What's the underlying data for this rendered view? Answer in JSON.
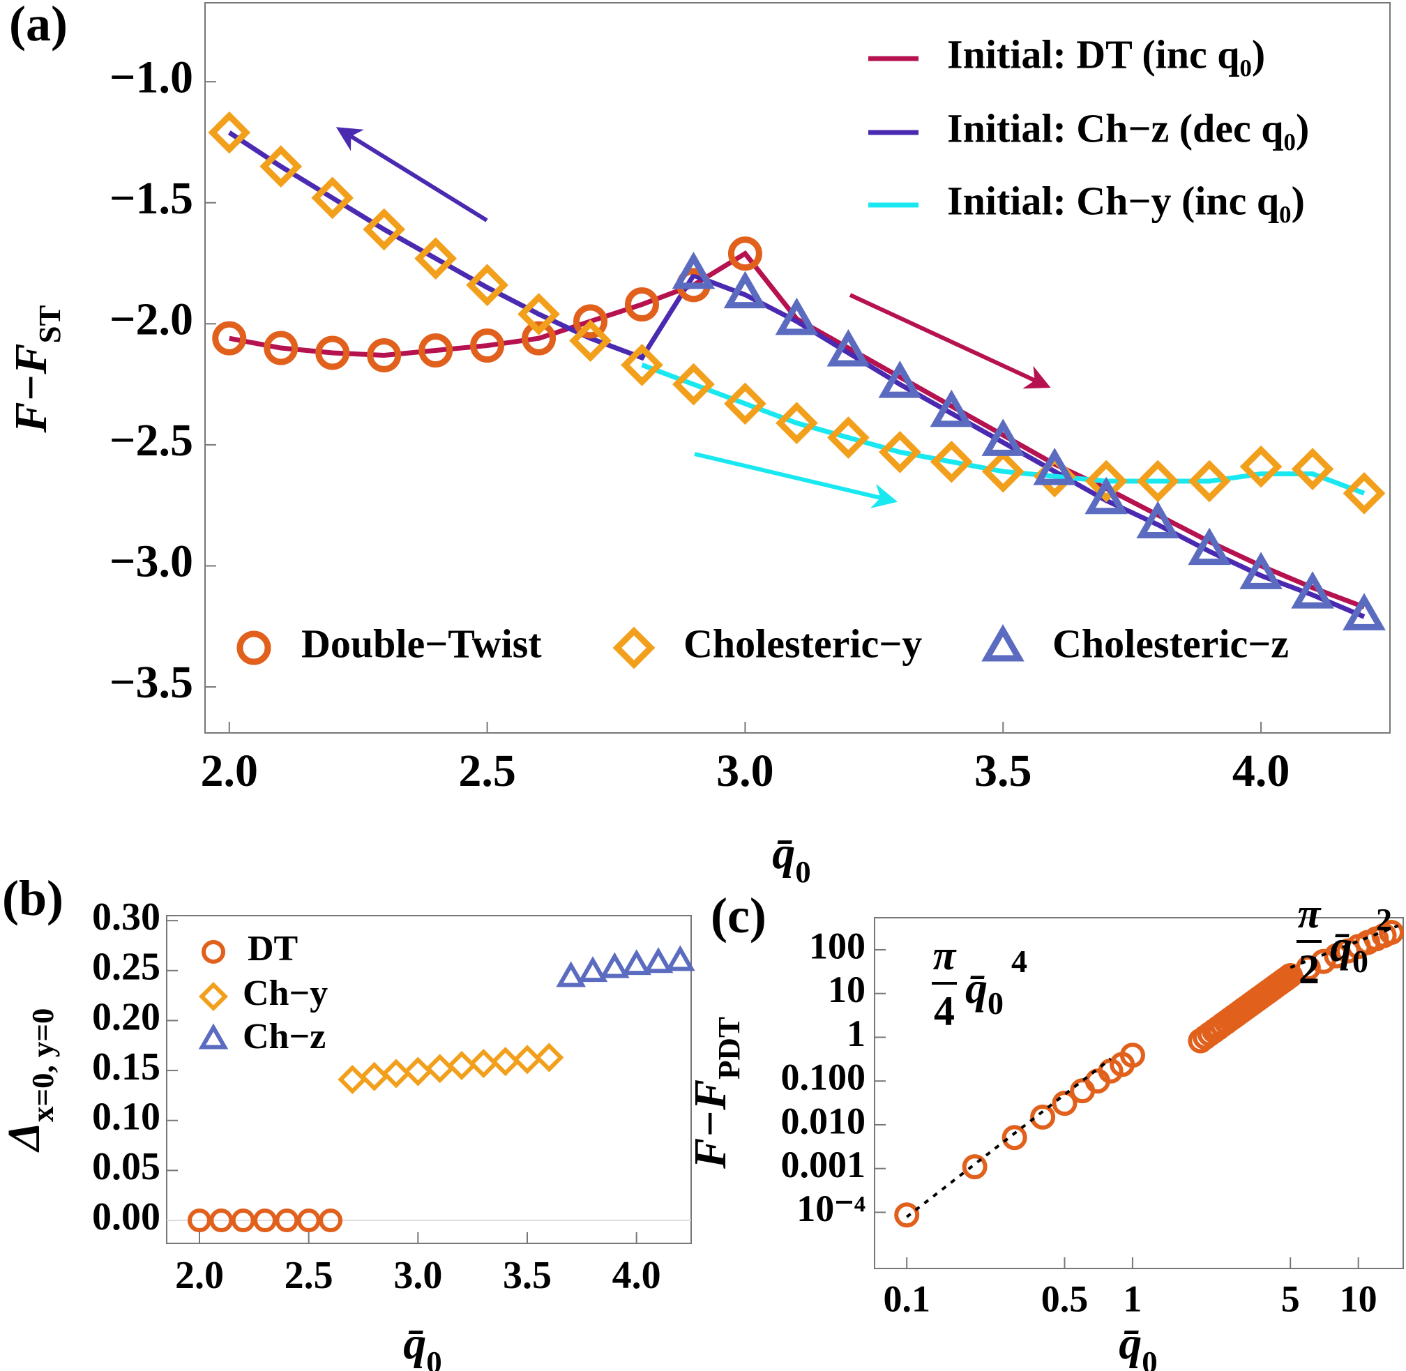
{
  "chart_data": [
    {
      "type": "line",
      "panel_label": "(a)",
      "xlabel": {
        "text": "q̄",
        "sub": "0"
      },
      "ylabel": {
        "text": "F−F",
        "sub": "ST"
      },
      "xlim": [
        1.953,
        4.25
      ],
      "ylim": [
        -3.69,
        -0.674
      ],
      "xticks": [
        {
          "value": 2,
          "label": "2.0"
        },
        2.5,
        {
          "value": 3,
          "label": "3.0"
        },
        3.5,
        {
          "value": 4,
          "label": "4.0"
        }
      ],
      "yticks": [
        {
          "value": -1,
          "label": "−1.0"
        },
        {
          "value": -1.5,
          "label": "−1.5"
        },
        {
          "value": -2,
          "label": "−2.0"
        },
        {
          "value": -2.5,
          "label": "−2.5"
        },
        {
          "value": -3,
          "label": "−3.0"
        },
        {
          "value": -3.5,
          "label": "−3.5"
        }
      ],
      "series": [
        {
          "name": "Initial: DT (inc q₀)",
          "color": "#b5124f",
          "style": "line",
          "x": [
            2.0,
            2.1,
            2.2,
            2.3,
            2.4,
            2.5,
            2.6,
            2.7,
            2.8,
            2.9,
            3.0,
            3.1,
            3.2,
            3.3,
            3.4,
            3.5,
            3.6,
            3.7,
            3.8,
            3.9,
            4.0,
            4.1,
            4.2
          ],
          "values": [
            -2.06,
            -2.1,
            -2.12,
            -2.13,
            -2.11,
            -2.09,
            -2.06,
            -1.99,
            -1.92,
            -1.84,
            -1.71,
            -1.98,
            -2.1,
            -2.22,
            -2.34,
            -2.46,
            -2.58,
            -2.68,
            -2.79,
            -2.9,
            -3.0,
            -3.09,
            -3.17
          ]
        },
        {
          "name": "Initial: Ch−z (dec q₀)",
          "color": "#4a2ab0",
          "style": "line",
          "x": [
            2.0,
            2.1,
            2.2,
            2.3,
            2.4,
            2.5,
            2.6,
            2.7,
            2.8,
            2.9,
            3.0,
            3.1,
            3.2,
            3.3,
            3.4,
            3.5,
            3.6,
            3.7,
            3.8,
            3.9,
            4.0,
            4.1,
            4.2
          ],
          "values": [
            -1.21,
            -1.35,
            -1.48,
            -1.61,
            -1.73,
            -1.85,
            -1.96,
            -2.06,
            -2.14,
            -1.8,
            -1.88,
            -1.99,
            -2.12,
            -2.25,
            -2.37,
            -2.49,
            -2.61,
            -2.73,
            -2.83,
            -2.94,
            -3.04,
            -3.12,
            -3.21
          ]
        },
        {
          "name": "Initial: Ch−y (inc q₀)",
          "color": "#19e8f0",
          "style": "line",
          "x": [
            2.8,
            2.9,
            3.0,
            3.1,
            3.2,
            3.3,
            3.4,
            3.5,
            3.6,
            3.7,
            3.8,
            3.9,
            4.0,
            4.1,
            4.2
          ],
          "values": [
            -2.17,
            -2.25,
            -2.33,
            -2.41,
            -2.47,
            -2.53,
            -2.57,
            -2.61,
            -2.63,
            -2.65,
            -2.65,
            -2.65,
            -2.62,
            -2.62,
            -2.7
          ]
        },
        {
          "name": "Double−Twist",
          "color": "#e0601c",
          "marker": "circle",
          "x": [
            2.0,
            2.1,
            2.2,
            2.3,
            2.4,
            2.5,
            2.6,
            2.7,
            2.8,
            2.9,
            3.0
          ],
          "values": [
            -2.06,
            -2.1,
            -2.12,
            -2.13,
            -2.11,
            -2.09,
            -2.06,
            -1.99,
            -1.92,
            -1.84,
            -1.71
          ]
        },
        {
          "name": "Cholesteric−y",
          "color": "#f29f1c",
          "marker": "diamond",
          "x": [
            2.0,
            2.1,
            2.2,
            2.3,
            2.4,
            2.5,
            2.6,
            2.7,
            2.8,
            2.9,
            3.0,
            3.1,
            3.2,
            3.3,
            3.4,
            3.5,
            3.6,
            3.7,
            3.8,
            3.9,
            4.0,
            4.1,
            4.2
          ],
          "values": [
            -1.21,
            -1.35,
            -1.48,
            -1.61,
            -1.73,
            -1.84,
            -1.96,
            -2.07,
            -2.17,
            -2.25,
            -2.33,
            -2.41,
            -2.47,
            -2.53,
            -2.57,
            -2.61,
            -2.63,
            -2.65,
            -2.65,
            -2.65,
            -2.59,
            -2.6,
            -2.7
          ]
        },
        {
          "name": "Cholesteric−z",
          "color": "#5b6cc0",
          "marker": "triangle",
          "x": [
            2.9,
            3.0,
            3.1,
            3.2,
            3.3,
            3.4,
            3.5,
            3.6,
            3.7,
            3.8,
            3.9,
            4.0,
            4.1,
            4.2
          ],
          "values": [
            -1.8,
            -1.88,
            -1.99,
            -2.12,
            -2.25,
            -2.37,
            -2.49,
            -2.61,
            -2.73,
            -2.83,
            -2.94,
            -3.04,
            -3.12,
            -3.21
          ]
        }
      ]
    },
    {
      "type": "scatter",
      "panel_label": "(b)",
      "xlabel": {
        "text": "q̄",
        "sub": "0"
      },
      "ylabel": {
        "text": "Δ",
        "sub": "x=0, y=0"
      },
      "xlim": [
        1.85,
        4.25
      ],
      "ylim": [
        -0.023,
        0.305
      ],
      "xticks": [
        {
          "value": 2,
          "label": "2.0"
        },
        2.5,
        {
          "value": 3,
          "label": "3.0"
        },
        3.5,
        {
          "value": 4,
          "label": "4.0"
        }
      ],
      "yticks": [
        {
          "value": 0,
          "label": "0.00"
        },
        0.05,
        {
          "value": 0.1,
          "label": "0.10"
        },
        0.15,
        {
          "value": 0.2,
          "label": "0.20"
        },
        0.25,
        {
          "value": 0.3,
          "label": "0.30"
        }
      ],
      "series": [
        {
          "name": "DT",
          "color": "#e0601c",
          "marker": "circle",
          "x": [
            2.0,
            2.1,
            2.2,
            2.3,
            2.4,
            2.5,
            2.6
          ],
          "values": [
            0,
            0,
            0,
            0,
            0,
            0,
            0
          ]
        },
        {
          "name": "Ch−y",
          "color": "#f29f1c",
          "marker": "diamond",
          "x": [
            2.7,
            2.8,
            2.9,
            3.0,
            3.1,
            3.2,
            3.3,
            3.4,
            3.5,
            3.6
          ],
          "values": [
            0.141,
            0.144,
            0.147,
            0.149,
            0.152,
            0.155,
            0.157,
            0.159,
            0.161,
            0.163
          ]
        },
        {
          "name": "Ch−z",
          "color": "#5b6cc0",
          "marker": "triangle",
          "x": [
            3.7,
            3.8,
            3.9,
            4.0,
            4.1,
            4.2
          ],
          "values": [
            0.243,
            0.248,
            0.252,
            0.255,
            0.257,
            0.259
          ]
        }
      ]
    },
    {
      "type": "scatter",
      "panel_label": "(c)",
      "xlog": true,
      "ylog": true,
      "xlabel": {
        "text": "q̄",
        "sub": "0"
      },
      "ylabel": {
        "text": "F−F",
        "sub": "PDT"
      },
      "xlim": [
        0.072,
        15.8
      ],
      "ylim": [
        5.2e-06,
        540
      ],
      "xticks": [
        0.1,
        0.5,
        1,
        5,
        10
      ],
      "yticks": [
        {
          "value": 0.0001,
          "label": "10⁻⁴"
        },
        0.001,
        {
          "value": 0.01,
          "label": "0.010"
        },
        {
          "value": 0.1,
          "label": "0.100"
        },
        1,
        10,
        100
      ],
      "series": [
        {
          "color": "#e0601c",
          "marker": "circle",
          "x": [
            0.1,
            0.2,
            0.3,
            0.4,
            0.5,
            0.6,
            0.7,
            0.8,
            0.9,
            1.0,
            2.0,
            2.1,
            2.2,
            2.3,
            2.4,
            2.5,
            2.6,
            2.7,
            2.8,
            2.9,
            3.0,
            3.1,
            3.2,
            3.3,
            3.4,
            3.5,
            3.6,
            3.7,
            3.8,
            3.9,
            4.0,
            4.1,
            4.2,
            4.3,
            4.4,
            4.5,
            4.6,
            4.7,
            4.8,
            4.9,
            5,
            6,
            7,
            8,
            9,
            10,
            11,
            12,
            13,
            14
          ],
          "values": [
            8.7e-05,
            0.0011,
            0.0051,
            0.015,
            0.031,
            0.06,
            0.1,
            0.17,
            0.24,
            0.39,
            0.83,
            1.0,
            1.19,
            1.4,
            1.64,
            1.92,
            2.22,
            2.56,
            2.93,
            3.34,
            3.79,
            4.29,
            4.82,
            5.41,
            6.05,
            6.75,
            7.5,
            8.3,
            9.18,
            10.1,
            11.1,
            12.2,
            13.3,
            14.6,
            15.9,
            17.3,
            18.8,
            20.3,
            22.0,
            23.8,
            25.7,
            38.5,
            54.1,
            72.6,
            94.2,
            119,
            147,
            178,
            212,
            250
          ]
        },
        {
          "color": "#000000",
          "style": "dashed",
          "x": [
            0.1,
            0.8
          ],
          "values": [
            7.85e-05,
            0.322
          ]
        },
        {
          "color": "#000000",
          "style": "dashed",
          "x": [
            5,
            15
          ],
          "values": [
            39.3,
            353
          ]
        }
      ],
      "annotations": [
        {
          "num": "π",
          "den": "4",
          "text": "q̄",
          "sub": "0",
          "sup": "4"
        },
        {
          "num": "π",
          "den": "2",
          "text": "q̄",
          "sub": "0",
          "sup": "2"
        }
      ]
    }
  ]
}
